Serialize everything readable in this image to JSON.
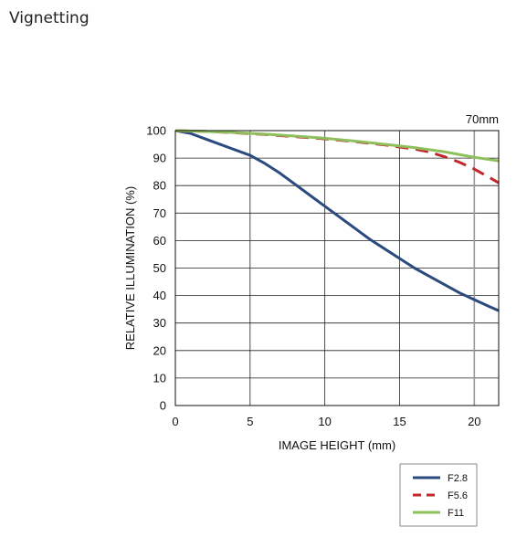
{
  "page": {
    "title": "Vignetting"
  },
  "chart_data": {
    "type": "line",
    "title": "",
    "annotation": "70mm",
    "xlabel": "IMAGE HEIGHT (mm)",
    "ylabel": "RELATIVE ILLUMINATION (%)",
    "xlim": [
      0,
      21.63
    ],
    "ylim": [
      0,
      100
    ],
    "xticks": [
      0,
      5,
      10,
      15,
      20
    ],
    "yticks": [
      0,
      10,
      20,
      30,
      40,
      50,
      60,
      70,
      80,
      90,
      100
    ],
    "grid": true,
    "legend_position": "bottom-right",
    "series": [
      {
        "name": "F2.8",
        "color": "#2b4a7e",
        "dash": "solid",
        "x": [
          0,
          1,
          2,
          3,
          4,
          5,
          6,
          7,
          8,
          9,
          10,
          11,
          12,
          13,
          14,
          15,
          16,
          17,
          18,
          19,
          20,
          21,
          21.63
        ],
        "y": [
          100,
          99,
          97,
          95,
          93,
          91,
          88,
          84.5,
          80.5,
          76.5,
          72.5,
          68.5,
          64.5,
          60.5,
          57,
          53.5,
          50,
          47,
          44,
          41,
          38.5,
          36,
          34.5
        ]
      },
      {
        "name": "F5.6",
        "color": "#c0282d",
        "dash": "dashed",
        "x": [
          0,
          2,
          4,
          6,
          8,
          10,
          12,
          14,
          16,
          17,
          18,
          19,
          20,
          21,
          21.63
        ],
        "y": [
          100,
          99.7,
          99.2,
          98.6,
          97.8,
          97,
          96,
          94.8,
          93.3,
          92.2,
          90.5,
          88.5,
          86,
          83,
          81
        ]
      },
      {
        "name": "F11",
        "color": "#8dbf5a",
        "dash": "solid",
        "x": [
          0,
          2,
          4,
          6,
          8,
          10,
          12,
          14,
          16,
          18,
          20,
          21.63
        ],
        "y": [
          100,
          99.7,
          99.3,
          98.7,
          98,
          97.2,
          96.2,
          95,
          93.8,
          92.3,
          90.3,
          89
        ]
      }
    ]
  }
}
